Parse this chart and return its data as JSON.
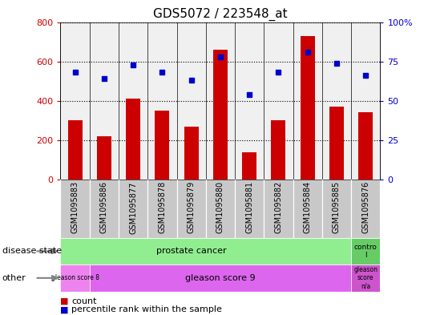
{
  "title": "GDS5072 / 223548_at",
  "samples": [
    "GSM1095883",
    "GSM1095886",
    "GSM1095877",
    "GSM1095878",
    "GSM1095879",
    "GSM1095880",
    "GSM1095881",
    "GSM1095882",
    "GSM1095884",
    "GSM1095885",
    "GSM1095876"
  ],
  "counts": [
    300,
    220,
    410,
    350,
    270,
    660,
    140,
    300,
    730,
    370,
    340
  ],
  "percentiles": [
    68,
    64,
    73,
    68,
    63,
    78,
    54,
    68,
    81,
    74,
    66
  ],
  "ylim_left": [
    0,
    800
  ],
  "ylim_right": [
    0,
    100
  ],
  "yticks_left": [
    0,
    200,
    400,
    600,
    800
  ],
  "yticks_right": [
    0,
    25,
    50,
    75,
    100
  ],
  "bar_color": "#cc0000",
  "dot_color": "#0000cc",
  "background_color": "#ffffff",
  "xticklabel_bg": "#c8c8c8",
  "disease_state_bg_main": "#90ee90",
  "disease_state_bg_ctrl": "#66cc66",
  "other_bg_g8": "#ee82ee",
  "other_bg_g9": "#dd66ee",
  "other_bg_na": "#cc55cc"
}
